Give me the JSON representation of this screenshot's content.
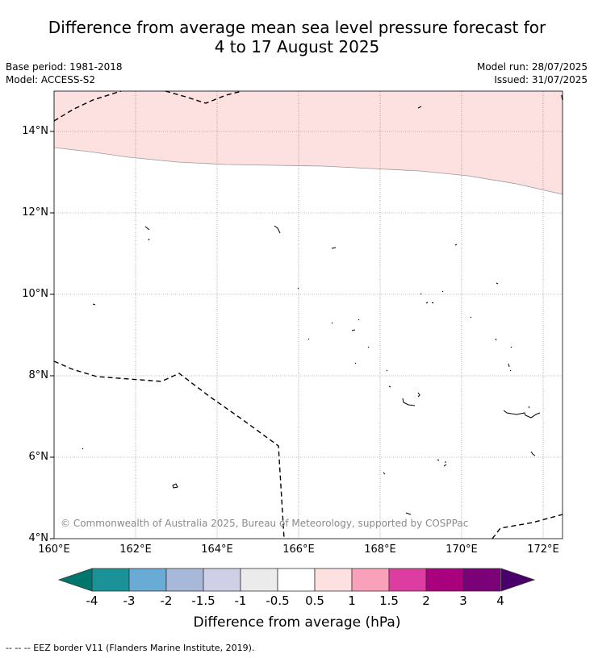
{
  "title_line1": "Difference from average mean sea level pressure forecast for",
  "title_line2": "4 to 17 August 2025",
  "meta": {
    "base_period": "Base period: 1981-2018",
    "model": "Model: ACCESS-S2",
    "model_run": "Model run: 28/07/2025",
    "issued": "Issued: 31/07/2025"
  },
  "map": {
    "lat_labels": [
      "14°N",
      "12°N",
      "10°N",
      "8°N",
      "6°N",
      "4°N"
    ],
    "lon_labels": [
      "160°E",
      "162°E",
      "164°E",
      "166°E",
      "168°E",
      "170°E",
      "172°E"
    ],
    "copyright": "© Commonwealth of Australia 2025, Bureau of Meteorology, supported by COSPPac",
    "positive_anomaly_color": "#fde0e0"
  },
  "colorbar": {
    "labels": [
      "-4",
      "-3",
      "-2",
      "-1.5",
      "-1",
      "-0.5",
      "0.5",
      "1",
      "1.5",
      "2",
      "3",
      "4"
    ],
    "colors": [
      "#1a9297",
      "#6aabd5",
      "#a8b8d9",
      "#cfd0e6",
      "#ebebeb",
      "#ffffff",
      "#fde0e0",
      "#f9a0ba",
      "#dd3da0",
      "#a9007d",
      "#7a0177"
    ],
    "low_extend_color": "#01766c",
    "high_extend_color": "#49006a",
    "title": "Difference from average (hPa)"
  },
  "footnote": "--  --  -- EEZ border V11 (Flanders Marine Institute, 2019)."
}
